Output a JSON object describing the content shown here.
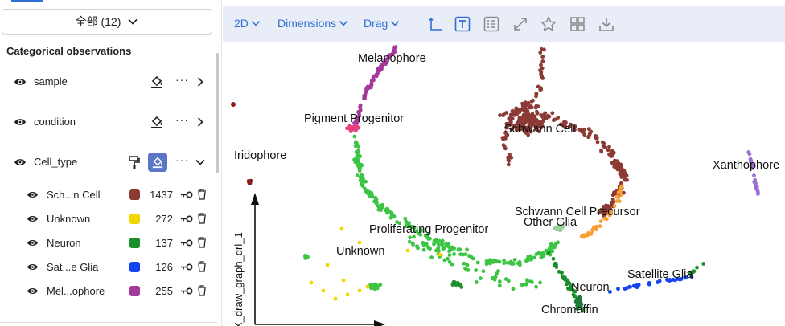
{
  "sidebar": {
    "filter_select": {
      "value": "全部 (12)"
    },
    "section_title": "Categorical observations",
    "observations": [
      {
        "label": "sample",
        "expanded": false
      },
      {
        "label": "condition",
        "expanded": false
      },
      {
        "label": "Cell_type",
        "expanded": true
      }
    ],
    "categories": [
      {
        "label": "Sch...n Cell",
        "count": "1437",
        "color": "#8b3a35"
      },
      {
        "label": "Unknown",
        "count": "272",
        "color": "#f2d600"
      },
      {
        "label": "Neuron",
        "count": "137",
        "color": "#1b8f2a"
      },
      {
        "label": "Sat...e Glia",
        "count": "126",
        "color": "#1444f0"
      },
      {
        "label": "Mel...ophore",
        "count": "255",
        "color": "#a3399a"
      }
    ]
  },
  "toolbar": {
    "view_mode": "2D",
    "dimensions_label": "Dimensions",
    "interaction_mode": "Drag",
    "icons": [
      "axes-icon",
      "text-labels-icon",
      "legend-list-icon",
      "fullscreen-icon",
      "star-icon",
      "grid-icon",
      "download-icon"
    ]
  },
  "plot": {
    "axis_label": "X_draw_graph_drl_1",
    "clusters": [
      {
        "name": "Melanophore",
        "color": "#a3399a"
      },
      {
        "name": "Pigment Progenitor",
        "color": "#e8407a"
      },
      {
        "name": "Iridophore",
        "color": "#8b1d1d"
      },
      {
        "name": "Schwann Cell",
        "color": "#8b3a35"
      },
      {
        "name": "Xanthophore",
        "color": "#9b6fd6"
      },
      {
        "name": "Schwann Cell Precursor",
        "color": "#f7a032"
      },
      {
        "name": "Other Glia",
        "color": "#9ad09a"
      },
      {
        "name": "Proliferating Progenitor",
        "color": "#3cc443"
      },
      {
        "name": "Unknown",
        "color": "#f2d600"
      },
      {
        "name": "Satellite Glia",
        "color": "#1444f0"
      },
      {
        "name": "Neuron",
        "color": "#1b8f2a"
      },
      {
        "name": "Chromaffin",
        "color": "#1e7a3a"
      }
    ]
  }
}
